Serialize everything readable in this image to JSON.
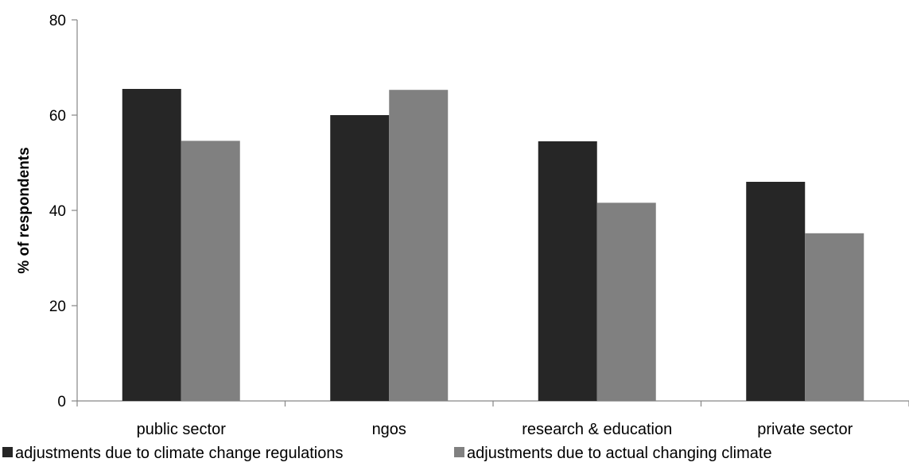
{
  "chart_data": {
    "type": "bar",
    "categories": [
      "public sector",
      "ngos",
      "research & education",
      "private sector"
    ],
    "series": [
      {
        "name": "adjustments due to climate change regulations",
        "values": [
          65.5,
          60,
          54.5,
          46
        ],
        "color": "#262626"
      },
      {
        "name": "adjustments due to actual changing climate",
        "values": [
          54.6,
          65.3,
          41.6,
          35.2
        ],
        "color": "#808080"
      }
    ],
    "title": "",
    "xlabel": "",
    "ylabel": "% of respondents",
    "ylim": [
      0,
      80
    ],
    "yticks": [
      "0",
      "20",
      "40",
      "60",
      "80"
    ],
    "grid": false,
    "legend_position": "bottom"
  }
}
